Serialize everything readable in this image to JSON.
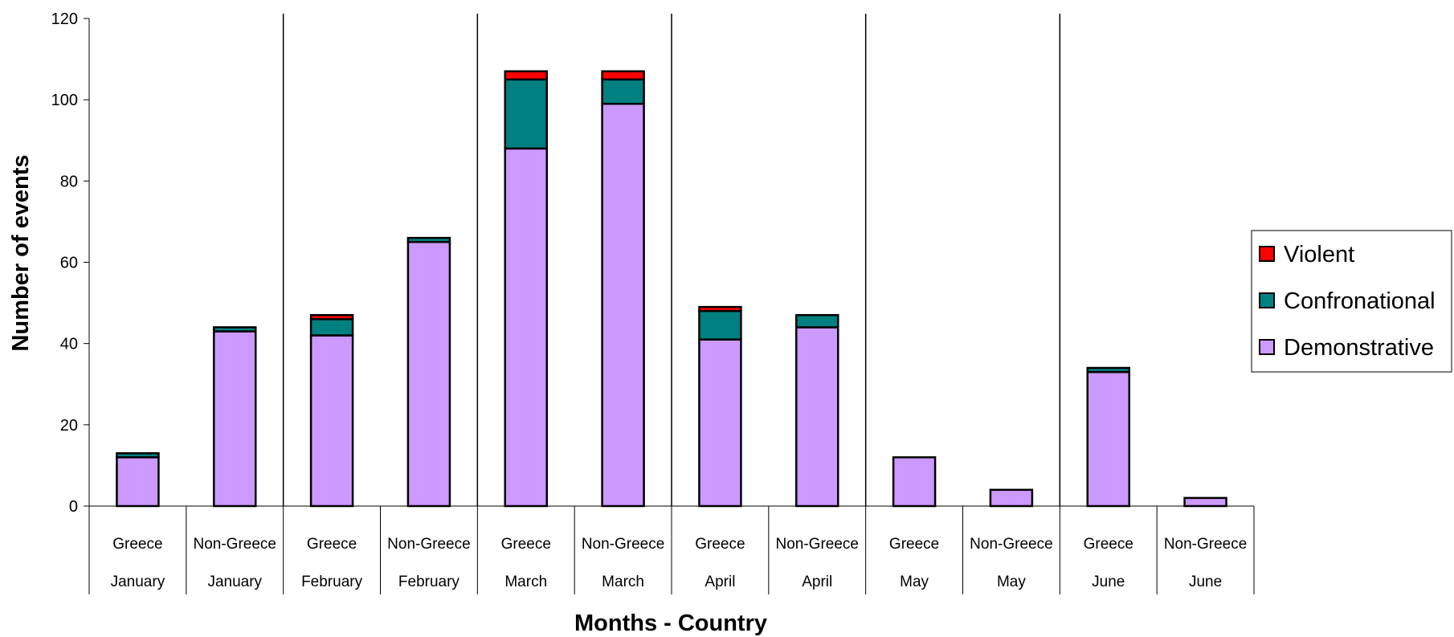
{
  "chart_data": {
    "type": "bar",
    "stacked": true,
    "xlabel": "Months - Country",
    "ylabel": "Number of events",
    "ylim": [
      0,
      120
    ],
    "yticks": [
      0,
      20,
      40,
      60,
      80,
      100,
      120
    ],
    "grid": false,
    "legend_position": "right",
    "categories": [
      {
        "country": "Greece",
        "month": "January"
      },
      {
        "country": "Non-Greece",
        "month": "January"
      },
      {
        "country": "Greece",
        "month": "February"
      },
      {
        "country": "Non-Greece",
        "month": "February"
      },
      {
        "country": "Greece",
        "month": "March"
      },
      {
        "country": "Non-Greece",
        "month": "March"
      },
      {
        "country": "Greece",
        "month": "April"
      },
      {
        "country": "Non-Greece",
        "month": "April"
      },
      {
        "country": "Greece",
        "month": "May"
      },
      {
        "country": "Non-Greece",
        "month": "May"
      },
      {
        "country": "Greece",
        "month": "June"
      },
      {
        "country": "Non-Greece",
        "month": "June"
      }
    ],
    "series": [
      {
        "name": "Demonstrative",
        "color": "#cc99ff",
        "values": [
          12,
          43,
          42,
          65,
          88,
          99,
          41,
          44,
          12,
          4,
          33,
          2
        ]
      },
      {
        "name": "Confronational",
        "color": "#008080",
        "values": [
          1,
          1,
          4,
          1,
          17,
          6,
          7,
          3,
          0,
          0,
          1,
          0
        ]
      },
      {
        "name": "Violent",
        "color": "#ff0000",
        "values": [
          0,
          0,
          1,
          0,
          2,
          2,
          1,
          0,
          0,
          0,
          0,
          0
        ]
      }
    ],
    "legend_order": [
      "Violent",
      "Confronational",
      "Demonstrative"
    ]
  }
}
